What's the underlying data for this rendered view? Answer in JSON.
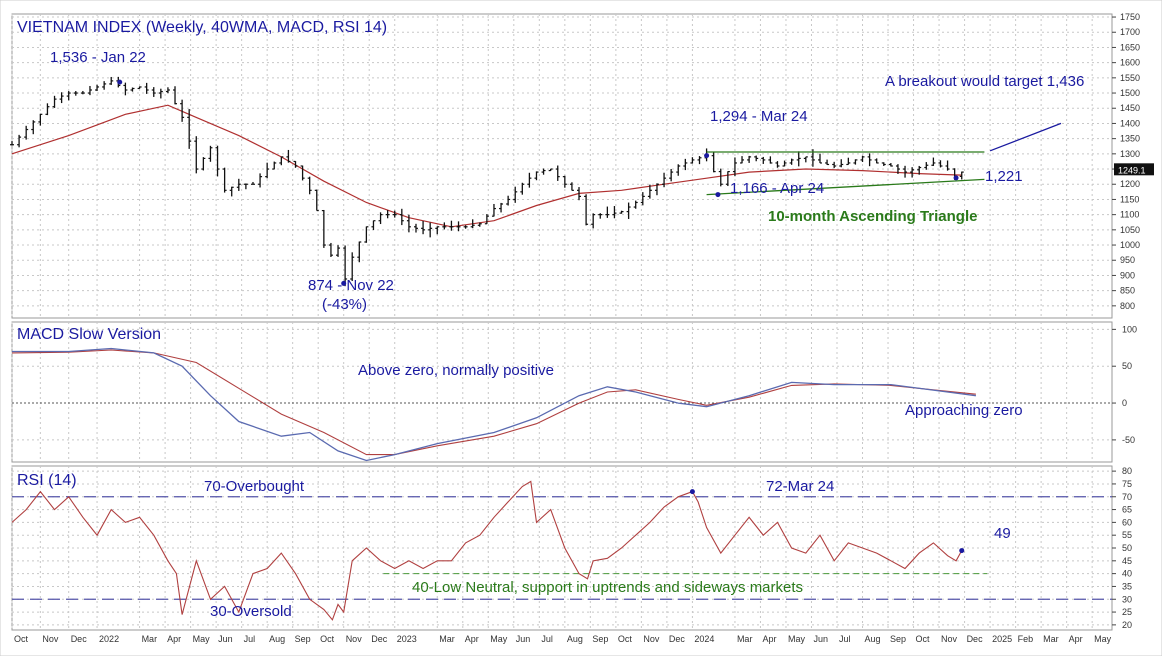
{
  "chart_data": [
    {
      "type": "ohlc-bar",
      "title": "VIETNAM INDEX (Weekly, 40WMA, MACD, RSI 14)",
      "ylim": [
        760,
        1760
      ],
      "y_ticks": [
        800,
        850,
        900,
        950,
        1000,
        1050,
        1100,
        1150,
        1200,
        1250,
        1300,
        1350,
        1400,
        1450,
        1500,
        1550,
        1600,
        1650,
        1700,
        1750
      ],
      "last_price_label": "1249.1",
      "series_price": [
        [
          0,
          1330
        ],
        [
          5,
          1380
        ],
        [
          10,
          1430
        ],
        [
          15,
          1480
        ],
        [
          20,
          1500
        ],
        [
          25,
          1500
        ],
        [
          30,
          1520
        ],
        [
          35,
          1540
        ],
        [
          40,
          1510
        ],
        [
          45,
          1520
        ],
        [
          50,
          1500
        ],
        [
          55,
          1510
        ],
        [
          60,
          1420
        ],
        [
          62,
          1360
        ],
        [
          65,
          1250
        ],
        [
          70,
          1320
        ],
        [
          75,
          1180
        ],
        [
          80,
          1200
        ],
        [
          85,
          1200
        ],
        [
          90,
          1250
        ],
        [
          95,
          1290
        ],
        [
          100,
          1260
        ],
        [
          105,
          1180
        ],
        [
          108,
          1100
        ],
        [
          110,
          1000
        ],
        [
          113,
          960
        ],
        [
          115,
          990
        ],
        [
          117,
          874
        ],
        [
          120,
          960
        ],
        [
          125,
          1060
        ],
        [
          130,
          1100
        ],
        [
          135,
          1100
        ],
        [
          140,
          1060
        ],
        [
          145,
          1050
        ],
        [
          150,
          1060
        ],
        [
          155,
          1060
        ],
        [
          160,
          1060
        ],
        [
          165,
          1070
        ],
        [
          170,
          1120
        ],
        [
          175,
          1150
        ],
        [
          180,
          1200
        ],
        [
          185,
          1240
        ],
        [
          190,
          1250
        ],
        [
          195,
          1200
        ],
        [
          200,
          1160
        ],
        [
          203,
          1050
        ],
        [
          205,
          1100
        ],
        [
          210,
          1100
        ],
        [
          215,
          1110
        ],
        [
          220,
          1140
        ],
        [
          225,
          1180
        ],
        [
          230,
          1220
        ],
        [
          235,
          1260
        ],
        [
          240,
          1280
        ],
        [
          245,
          1294
        ],
        [
          247,
          1250
        ],
        [
          250,
          1200
        ],
        [
          253,
          1250
        ],
        [
          255,
          1270
        ],
        [
          260,
          1290
        ],
        [
          265,
          1280
        ],
        [
          270,
          1260
        ],
        [
          275,
          1280
        ],
        [
          280,
          1290
        ],
        [
          285,
          1270
        ],
        [
          290,
          1260
        ],
        [
          295,
          1270
        ],
        [
          300,
          1290
        ],
        [
          305,
          1270
        ],
        [
          310,
          1260
        ],
        [
          315,
          1240
        ],
        [
          320,
          1255
        ],
        [
          325,
          1270
        ],
        [
          330,
          1250
        ],
        [
          333,
          1221
        ],
        [
          335,
          1240
        ]
      ],
      "series_wma40": [
        [
          0,
          1300
        ],
        [
          20,
          1360
        ],
        [
          40,
          1430
        ],
        [
          55,
          1460
        ],
        [
          65,
          1420
        ],
        [
          80,
          1360
        ],
        [
          95,
          1290
        ],
        [
          110,
          1210
        ],
        [
          125,
          1140
        ],
        [
          140,
          1090
        ],
        [
          155,
          1060
        ],
        [
          170,
          1080
        ],
        [
          185,
          1130
        ],
        [
          200,
          1170
        ],
        [
          215,
          1180
        ],
        [
          230,
          1200
        ],
        [
          245,
          1220
        ],
        [
          260,
          1240
        ],
        [
          280,
          1250
        ],
        [
          300,
          1245
        ],
        [
          320,
          1235
        ],
        [
          335,
          1230
        ]
      ],
      "annotations": [
        {
          "text": "1,536 - Jan 22",
          "x": 38,
          "y": 1536
        },
        {
          "text": "874 - Nov 22",
          "x": 117,
          "y": 874
        },
        {
          "text": "(-43%)",
          "x": 117,
          "y": 874
        },
        {
          "text": "1,294 - Mar 24",
          "x": 245,
          "y": 1294
        },
        {
          "text": "1,166 - Apr 24",
          "x": 249,
          "y": 1166
        },
        {
          "text": "1,221",
          "x": 333,
          "y": 1221
        },
        {
          "text": "A breakout would target 1,436",
          "x": 335,
          "y": 1436
        },
        {
          "text": "10-month Ascending Triangle",
          "x": 290,
          "y": 1040
        }
      ],
      "triangle_top": [
        [
          245,
          1306
        ],
        [
          343,
          1306
        ]
      ],
      "triangle_bottom": [
        [
          245,
          1166
        ],
        [
          343,
          1216
        ]
      ],
      "breakout_line": [
        [
          345,
          1310
        ],
        [
          370,
          1400
        ]
      ]
    },
    {
      "type": "line",
      "title": "MACD  Slow Version",
      "ylim": [
        -80,
        110
      ],
      "y_ticks": [
        -50,
        0,
        50,
        100
      ],
      "series_macd": [
        [
          0,
          70
        ],
        [
          20,
          70
        ],
        [
          35,
          74
        ],
        [
          50,
          68
        ],
        [
          60,
          50
        ],
        [
          70,
          10
        ],
        [
          80,
          -25
        ],
        [
          95,
          -45
        ],
        [
          105,
          -40
        ],
        [
          115,
          -65
        ],
        [
          125,
          -78
        ],
        [
          135,
          -70
        ],
        [
          150,
          -55
        ],
        [
          170,
          -40
        ],
        [
          185,
          -20
        ],
        [
          200,
          10
        ],
        [
          210,
          22
        ],
        [
          220,
          15
        ],
        [
          235,
          0
        ],
        [
          245,
          -5
        ],
        [
          260,
          10
        ],
        [
          275,
          28
        ],
        [
          290,
          25
        ],
        [
          310,
          25
        ],
        [
          330,
          15
        ],
        [
          340,
          10
        ]
      ],
      "series_signal": [
        [
          0,
          68
        ],
        [
          20,
          69
        ],
        [
          35,
          72
        ],
        [
          50,
          68
        ],
        [
          65,
          55
        ],
        [
          80,
          20
        ],
        [
          95,
          -15
        ],
        [
          110,
          -40
        ],
        [
          125,
          -70
        ],
        [
          135,
          -70
        ],
        [
          150,
          -58
        ],
        [
          170,
          -45
        ],
        [
          185,
          -28
        ],
        [
          200,
          0
        ],
        [
          210,
          15
        ],
        [
          220,
          18
        ],
        [
          235,
          5
        ],
        [
          245,
          -3
        ],
        [
          260,
          8
        ],
        [
          275,
          24
        ],
        [
          290,
          26
        ],
        [
          310,
          24
        ],
        [
          330,
          16
        ],
        [
          340,
          12
        ]
      ],
      "annotations": [
        {
          "text": "Above zero, normally positive"
        },
        {
          "text": "Approaching zero"
        }
      ]
    },
    {
      "type": "line",
      "title": "RSI (14)",
      "ylim": [
        18,
        82
      ],
      "y_ticks": [
        20,
        25,
        30,
        35,
        40,
        45,
        50,
        55,
        60,
        65,
        70,
        75,
        80
      ],
      "series_rsi": [
        [
          0,
          60
        ],
        [
          5,
          65
        ],
        [
          10,
          72
        ],
        [
          15,
          65
        ],
        [
          20,
          70
        ],
        [
          25,
          62
        ],
        [
          30,
          55
        ],
        [
          35,
          65
        ],
        [
          40,
          60
        ],
        [
          45,
          62
        ],
        [
          50,
          55
        ],
        [
          55,
          45
        ],
        [
          58,
          40
        ],
        [
          60,
          24
        ],
        [
          65,
          45
        ],
        [
          70,
          30
        ],
        [
          75,
          35
        ],
        [
          80,
          25
        ],
        [
          85,
          40
        ],
        [
          90,
          42
        ],
        [
          95,
          48
        ],
        [
          100,
          40
        ],
        [
          105,
          30
        ],
        [
          110,
          26
        ],
        [
          113,
          22
        ],
        [
          115,
          28
        ],
        [
          117,
          25
        ],
        [
          120,
          45
        ],
        [
          125,
          50
        ],
        [
          130,
          45
        ],
        [
          135,
          42
        ],
        [
          140,
          45
        ],
        [
          145,
          42
        ],
        [
          150,
          45
        ],
        [
          155,
          45
        ],
        [
          160,
          52
        ],
        [
          165,
          55
        ],
        [
          170,
          62
        ],
        [
          175,
          68
        ],
        [
          180,
          74
        ],
        [
          183,
          76
        ],
        [
          185,
          60
        ],
        [
          190,
          65
        ],
        [
          195,
          50
        ],
        [
          200,
          40
        ],
        [
          203,
          38
        ],
        [
          205,
          45
        ],
        [
          210,
          46
        ],
        [
          215,
          50
        ],
        [
          220,
          55
        ],
        [
          225,
          60
        ],
        [
          230,
          66
        ],
        [
          235,
          70
        ],
        [
          240,
          72
        ],
        [
          242,
          68
        ],
        [
          245,
          58
        ],
        [
          250,
          48
        ],
        [
          255,
          55
        ],
        [
          260,
          62
        ],
        [
          265,
          55
        ],
        [
          270,
          60
        ],
        [
          275,
          50
        ],
        [
          280,
          48
        ],
        [
          285,
          55
        ],
        [
          290,
          45
        ],
        [
          295,
          52
        ],
        [
          300,
          50
        ],
        [
          305,
          48
        ],
        [
          310,
          45
        ],
        [
          315,
          42
        ],
        [
          320,
          48
        ],
        [
          325,
          52
        ],
        [
          330,
          47
        ],
        [
          333,
          45
        ],
        [
          335,
          49
        ]
      ],
      "level_lines": [
        70,
        40,
        30
      ],
      "annotations": [
        {
          "text": "70-Overbought"
        },
        {
          "text": "30-Oversold"
        },
        {
          "text": "72-Mar 24",
          "x": 240,
          "y": 72
        },
        {
          "text": "49",
          "x": 335,
          "y": 49
        },
        {
          "text": "40-Low Neutral, support in uptrends and sideways markets"
        }
      ]
    }
  ],
  "x_axis_labels": [
    {
      "label": "Oct",
      "x": 0
    },
    {
      "label": "Nov",
      "x": 10
    },
    {
      "label": "Dec",
      "x": 20
    },
    {
      "label": "2022",
      "x": 30
    },
    {
      "label": "Mar",
      "x": 45
    },
    {
      "label": "Apr",
      "x": 54
    },
    {
      "label": "May",
      "x": 63
    },
    {
      "label": "Jun",
      "x": 72
    },
    {
      "label": "Jul",
      "x": 81
    },
    {
      "label": "Aug",
      "x": 90
    },
    {
      "label": "Sep",
      "x": 99
    },
    {
      "label": "Oct",
      "x": 108
    },
    {
      "label": "Nov",
      "x": 117
    },
    {
      "label": "Dec",
      "x": 126
    },
    {
      "label": "2023",
      "x": 135
    },
    {
      "label": "Mar",
      "x": 150
    },
    {
      "label": "Apr",
      "x": 159
    },
    {
      "label": "May",
      "x": 168
    },
    {
      "label": "Jun",
      "x": 177
    },
    {
      "label": "Jul",
      "x": 186
    },
    {
      "label": "Aug",
      "x": 195
    },
    {
      "label": "Sep",
      "x": 204
    },
    {
      "label": "Oct",
      "x": 213
    },
    {
      "label": "Nov",
      "x": 222
    },
    {
      "label": "Dec",
      "x": 231
    },
    {
      "label": "2024",
      "x": 240
    },
    {
      "label": "Mar",
      "x": 255
    },
    {
      "label": "Apr",
      "x": 264
    },
    {
      "label": "May",
      "x": 273
    },
    {
      "label": "Jun",
      "x": 282
    },
    {
      "label": "Jul",
      "x": 291
    },
    {
      "label": "Aug",
      "x": 300
    },
    {
      "label": "Sep",
      "x": 309
    },
    {
      "label": "Oct",
      "x": 318
    },
    {
      "label": "Nov",
      "x": 327
    },
    {
      "label": "Dec",
      "x": 336
    },
    {
      "label": "2025",
      "x": 345
    },
    {
      "label": "Feb",
      "x": 354
    },
    {
      "label": "Mar",
      "x": 363
    },
    {
      "label": "Apr",
      "x": 372
    },
    {
      "label": "May",
      "x": 381
    }
  ],
  "colors": {
    "annotation": "#1a1aa0",
    "title": "#1a1aa0",
    "green": "#2a7a1a",
    "ma": "#b03030",
    "macd": "#5a6ab0",
    "signal": "#b04040",
    "rsi": "#b04040",
    "level": "#5555aa",
    "grid": "#c8c8c8"
  }
}
